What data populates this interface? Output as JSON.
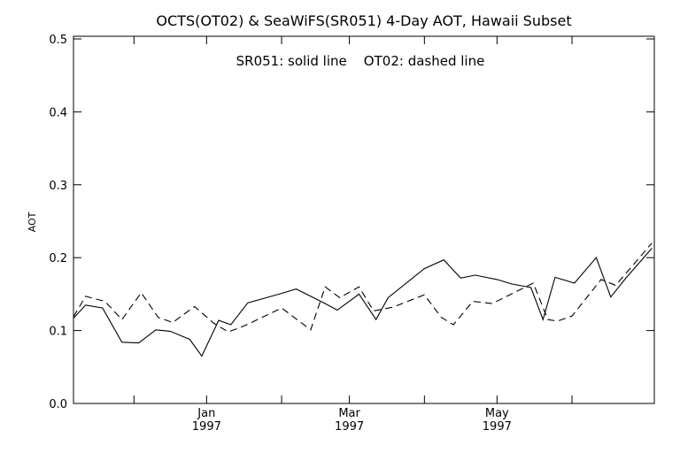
{
  "chart_data": {
    "type": "line",
    "title": "OCTS(OT02) & SeaWiFS(SR051) 4-Day AOT, Hawaii Subset",
    "annotation": "SR051: solid line    OT02: dashed line",
    "xlabel": "",
    "ylabel": "AOT",
    "ylim": [
      0.0,
      0.5
    ],
    "yticks": [
      "0.0",
      "0.1",
      "0.2",
      "0.3",
      "0.4",
      "0.5"
    ],
    "xlim_days": [
      0,
      240
    ],
    "xticks": [
      {
        "day": 25,
        "label": ""
      },
      {
        "day": 55,
        "label": "Jan",
        "sublabel": "1997"
      },
      {
        "day": 86,
        "label": ""
      },
      {
        "day": 114,
        "label": "Mar",
        "sublabel": "1997"
      },
      {
        "day": 145,
        "label": ""
      },
      {
        "day": 175,
        "label": "May",
        "sublabel": "1997"
      },
      {
        "day": 206,
        "label": ""
      }
    ],
    "grid": false,
    "series": [
      {
        "name": "SR051",
        "style": "solid",
        "color": "#000000",
        "x": [
          0,
          5,
          12,
          20,
          27,
          34,
          40,
          48,
          53,
          60,
          65,
          72,
          85,
          92,
          104,
          109,
          118,
          125,
          130,
          145,
          153,
          160,
          166,
          175,
          181,
          189,
          194,
          199,
          207,
          216,
          222,
          228,
          239
        ],
        "y": [
          0.117,
          0.135,
          0.131,
          0.084,
          0.083,
          0.101,
          0.099,
          0.088,
          0.065,
          0.114,
          0.108,
          0.138,
          0.15,
          0.157,
          0.137,
          0.128,
          0.15,
          0.115,
          0.145,
          0.185,
          0.197,
          0.172,
          0.176,
          0.17,
          0.164,
          0.159,
          0.115,
          0.173,
          0.165,
          0.2,
          0.146,
          0.171,
          0.213
        ]
      },
      {
        "name": "OT02",
        "style": "dashed",
        "color": "#000000",
        "x": [
          0,
          5,
          13,
          20,
          28,
          35,
          41,
          50,
          58,
          64,
          71,
          86,
          98,
          104,
          110,
          118,
          124,
          132,
          145,
          152,
          157,
          165,
          173,
          190,
          196,
          200,
          206,
          212,
          218,
          224,
          239
        ],
        "y": [
          0.119,
          0.147,
          0.14,
          0.115,
          0.152,
          0.118,
          0.111,
          0.133,
          0.11,
          0.098,
          0.107,
          0.131,
          0.101,
          0.16,
          0.145,
          0.16,
          0.127,
          0.132,
          0.149,
          0.118,
          0.108,
          0.14,
          0.137,
          0.165,
          0.115,
          0.113,
          0.12,
          0.145,
          0.17,
          0.162,
          0.22
        ]
      }
    ]
  }
}
